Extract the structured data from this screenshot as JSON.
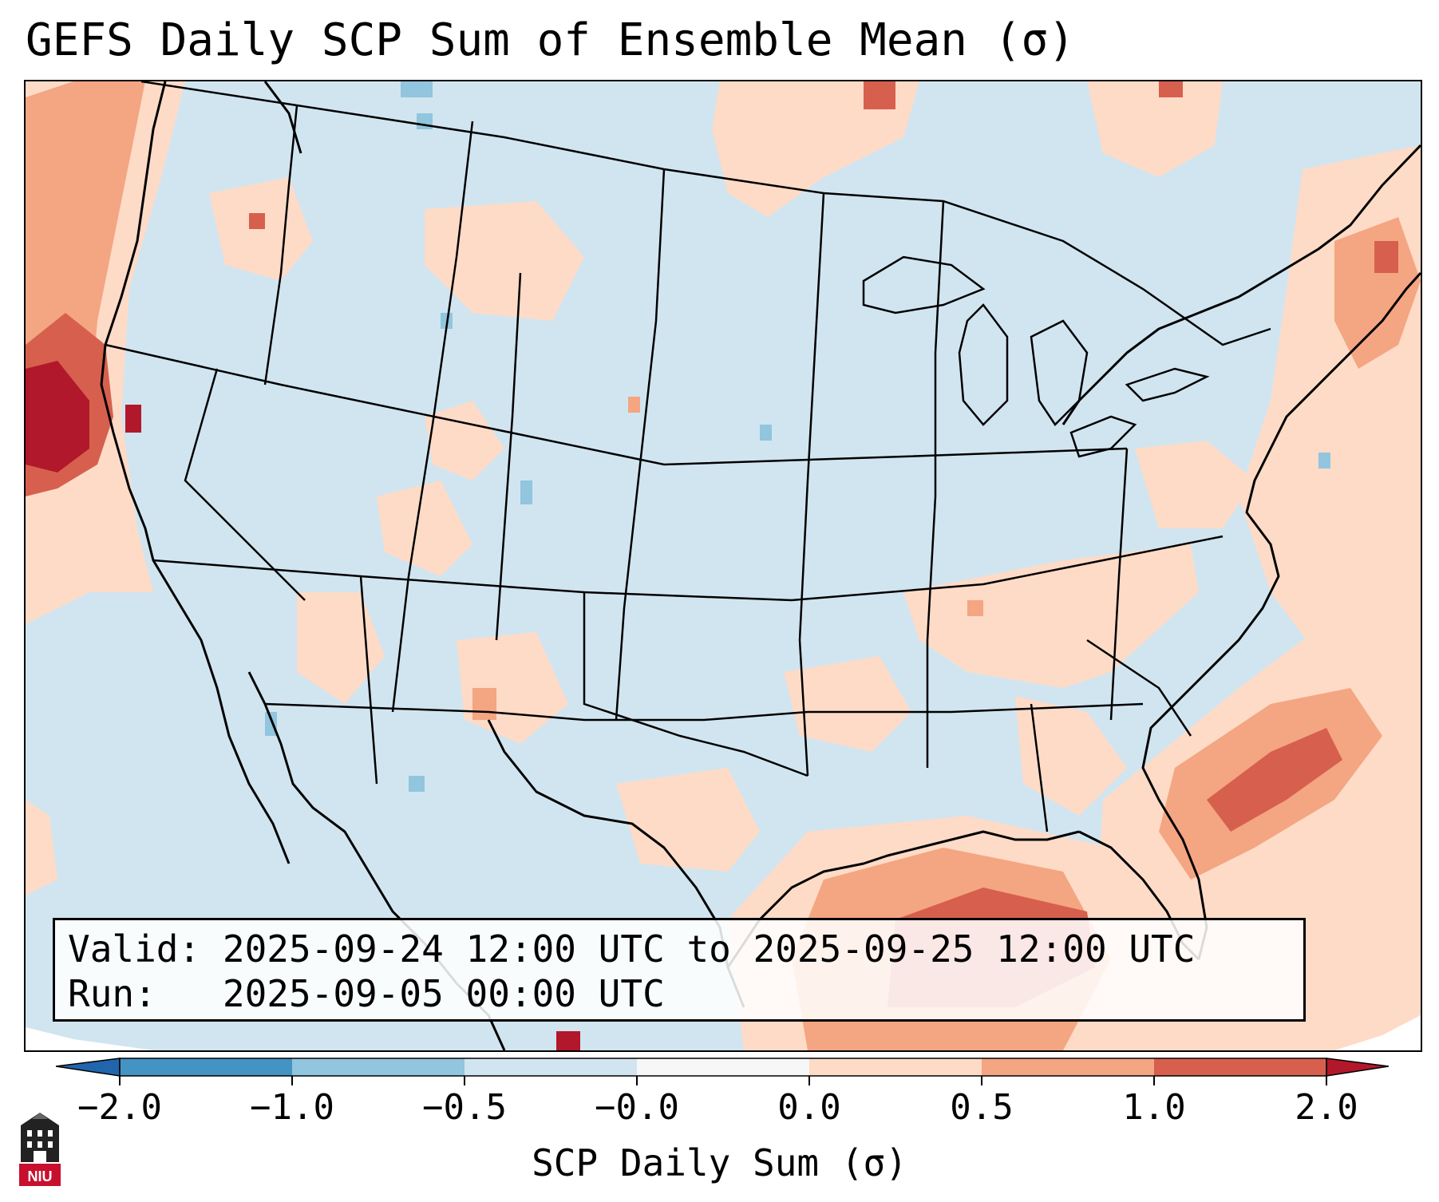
{
  "title": "GEFS Daily SCP Sum of Ensemble Mean (σ)",
  "info": {
    "valid_label": "Valid:",
    "valid_value": "2025-09-24 12:00 UTC to 2025-09-25 12:00 UTC",
    "run_label": "Run:",
    "run_value": "2025-09-05 00:00 UTC"
  },
  "colorbar": {
    "label": "SCP Daily Sum (σ)",
    "ticks": [
      "−2.0",
      "−1.0",
      "−0.5",
      "−0.0",
      "0.0",
      "0.5",
      "1.0",
      "2.0"
    ],
    "colors": [
      "#2166ac",
      "#4393c3",
      "#92c5de",
      "#d1e5f0",
      "#f7f7f7",
      "#fddbc7",
      "#f4a582",
      "#d6604d",
      "#b2182b"
    ]
  },
  "logo": {
    "text": "NIU",
    "icon": "university-tower-icon"
  }
}
